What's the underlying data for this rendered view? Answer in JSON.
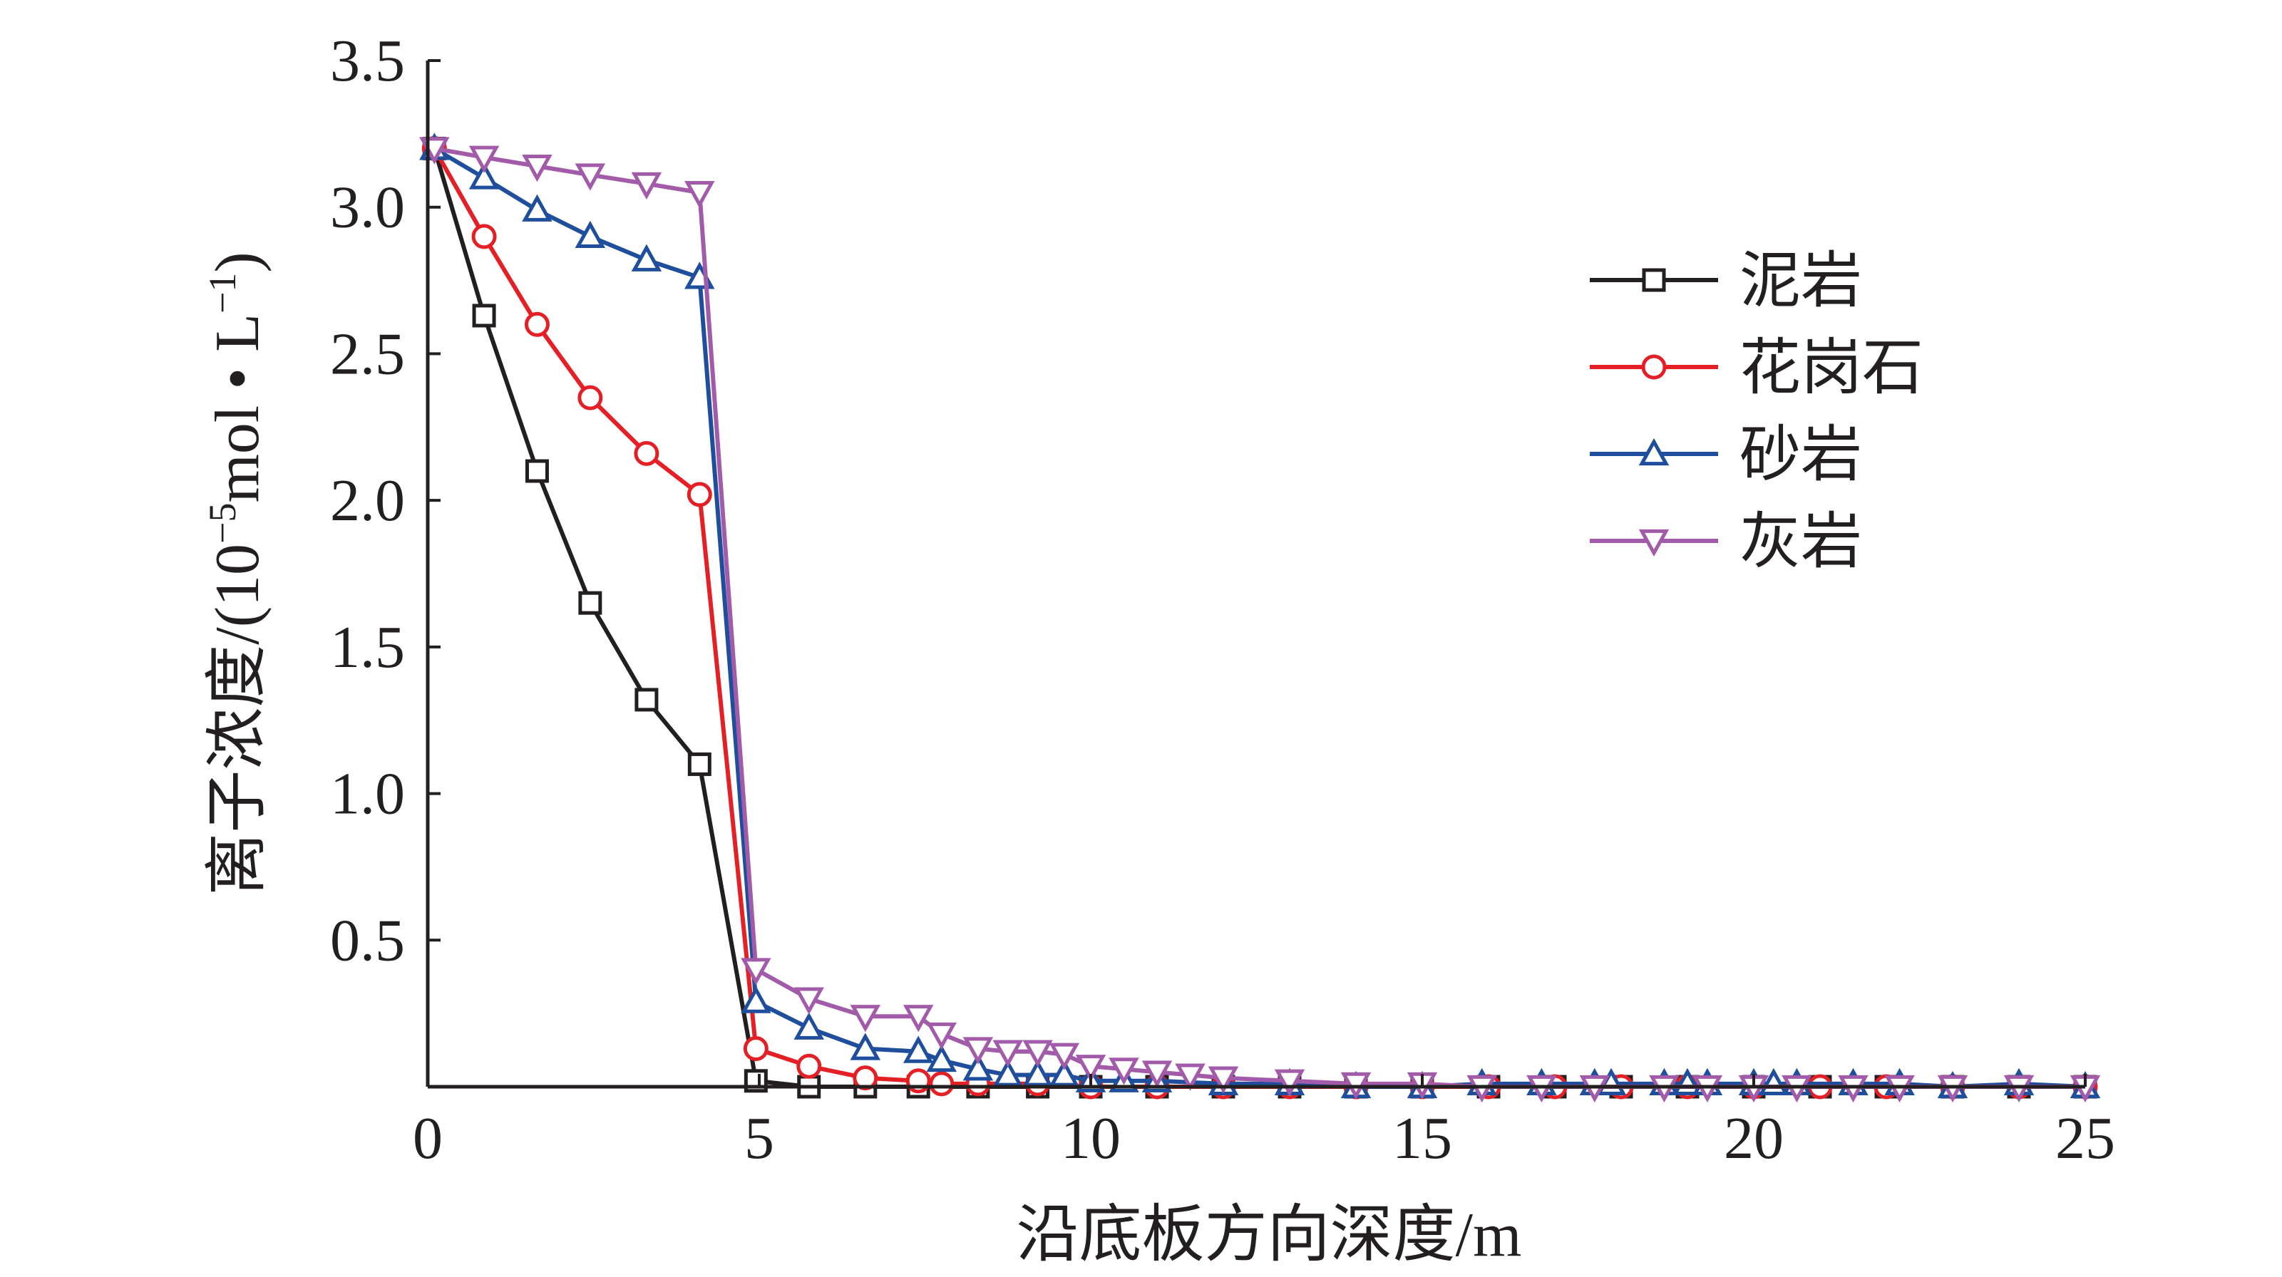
{
  "chart_data": {
    "type": "line",
    "xlabel": "沿底板方向深度/m",
    "ylabel_parts": {
      "prefix": "离子浓度/(10",
      "sup1": "−5",
      "middle": "mol • L",
      "sup2": "−1",
      "suffix": ")"
    },
    "xlim": [
      0,
      25
    ],
    "ylim": [
      0,
      3.5
    ],
    "xticks": [
      0,
      5,
      10,
      15,
      20,
      25
    ],
    "xtick_labels": [
      "0",
      "5",
      "10",
      "15",
      "20",
      "25"
    ],
    "yticks": [
      0.5,
      1.0,
      1.5,
      2.0,
      2.5,
      3.0,
      3.5
    ],
    "ytick_labels": [
      "0.5",
      "1.0",
      "1.5",
      "2.0",
      "2.5",
      "3.0",
      "3.5"
    ],
    "legend_position": "top-right",
    "grid": false,
    "series": [
      {
        "name": "泥岩",
        "color": "#231f20",
        "marker": "square",
        "x": [
          0.1,
          0.85,
          1.65,
          2.45,
          3.3,
          4.1,
          4.95,
          5.75,
          6.6,
          7.4,
          8.3,
          9.2,
          10.0,
          11.0,
          12.0,
          13.0,
          14.0,
          15.0,
          16.0,
          17.0,
          18.0,
          19.0,
          20.0,
          21.0,
          22.0,
          23.0,
          24.0,
          25.0
        ],
        "y": [
          3.2,
          2.63,
          2.1,
          1.65,
          1.32,
          1.1,
          0.02,
          0.0,
          0.0,
          0.0,
          0.0,
          0.0,
          0.0,
          0.0,
          0.0,
          0.0,
          0.0,
          0.0,
          0.0,
          0.0,
          0.0,
          0.0,
          0.0,
          0.0,
          0.0,
          0.0,
          0.0,
          0.0
        ]
      },
      {
        "name": "花岗石",
        "color": "#e41f25",
        "marker": "circle",
        "x": [
          0.1,
          0.85,
          1.65,
          2.45,
          3.3,
          4.1,
          4.95,
          5.75,
          6.6,
          7.4,
          7.75,
          8.3,
          9.2,
          10.0,
          11.0,
          12.0,
          13.0,
          14.0,
          15.0,
          16.0,
          17.0,
          18.0,
          19.0,
          20.0,
          21.0,
          22.0,
          23.0,
          24.0,
          25.0
        ],
        "y": [
          3.2,
          2.9,
          2.6,
          2.35,
          2.16,
          2.02,
          0.13,
          0.07,
          0.03,
          0.02,
          0.01,
          0.01,
          0.01,
          0.0,
          0.0,
          0.0,
          0.0,
          0.0,
          0.0,
          0.0,
          0.0,
          0.0,
          0.0,
          0.0,
          0.0,
          0.0,
          0.0,
          0.0,
          0.0
        ]
      },
      {
        "name": "砂岩",
        "color": "#1f4e9c",
        "marker": "triangle-up",
        "x": [
          0.1,
          0.85,
          1.65,
          2.45,
          3.3,
          4.1,
          4.95,
          5.75,
          6.6,
          7.4,
          7.75,
          8.3,
          8.75,
          9.2,
          9.6,
          10.0,
          10.5,
          11.0,
          12.0,
          13.0,
          14.0,
          15.0,
          15.9,
          16.8,
          17.6,
          17.85,
          18.65,
          19.0,
          19.3,
          20.0,
          20.3,
          20.65,
          21.5,
          22.2,
          23.0,
          24.0,
          25.0
        ],
        "y": [
          3.2,
          3.1,
          2.99,
          2.9,
          2.82,
          2.76,
          0.29,
          0.2,
          0.13,
          0.12,
          0.09,
          0.06,
          0.04,
          0.04,
          0.04,
          0.02,
          0.02,
          0.02,
          0.01,
          0.01,
          0.0,
          0.0,
          0.01,
          0.01,
          0.01,
          0.01,
          0.01,
          0.01,
          0.01,
          0.01,
          0.01,
          0.01,
          0.01,
          0.01,
          0.0,
          0.01,
          0.0
        ]
      },
      {
        "name": "灰岩",
        "color": "#a25ba8",
        "marker": "triangle-down",
        "x": [
          0.1,
          0.85,
          1.65,
          2.45,
          3.3,
          4.1,
          4.95,
          5.75,
          6.6,
          7.4,
          7.75,
          8.3,
          8.75,
          9.2,
          9.6,
          10.0,
          10.5,
          11.0,
          11.5,
          12.0,
          13.0,
          14.0,
          15.0,
          15.9,
          16.8,
          17.6,
          18.65,
          19.3,
          20.0,
          20.65,
          21.5,
          22.2,
          23.0,
          24.0,
          25.0
        ],
        "y": [
          3.2,
          3.17,
          3.14,
          3.11,
          3.08,
          3.05,
          0.4,
          0.3,
          0.24,
          0.24,
          0.18,
          0.13,
          0.12,
          0.12,
          0.11,
          0.07,
          0.06,
          0.05,
          0.04,
          0.03,
          0.02,
          0.01,
          0.01,
          0.0,
          0.0,
          0.0,
          0.0,
          0.0,
          0.0,
          0.0,
          0.0,
          0.0,
          0.0,
          0.0,
          0.0
        ]
      }
    ]
  }
}
